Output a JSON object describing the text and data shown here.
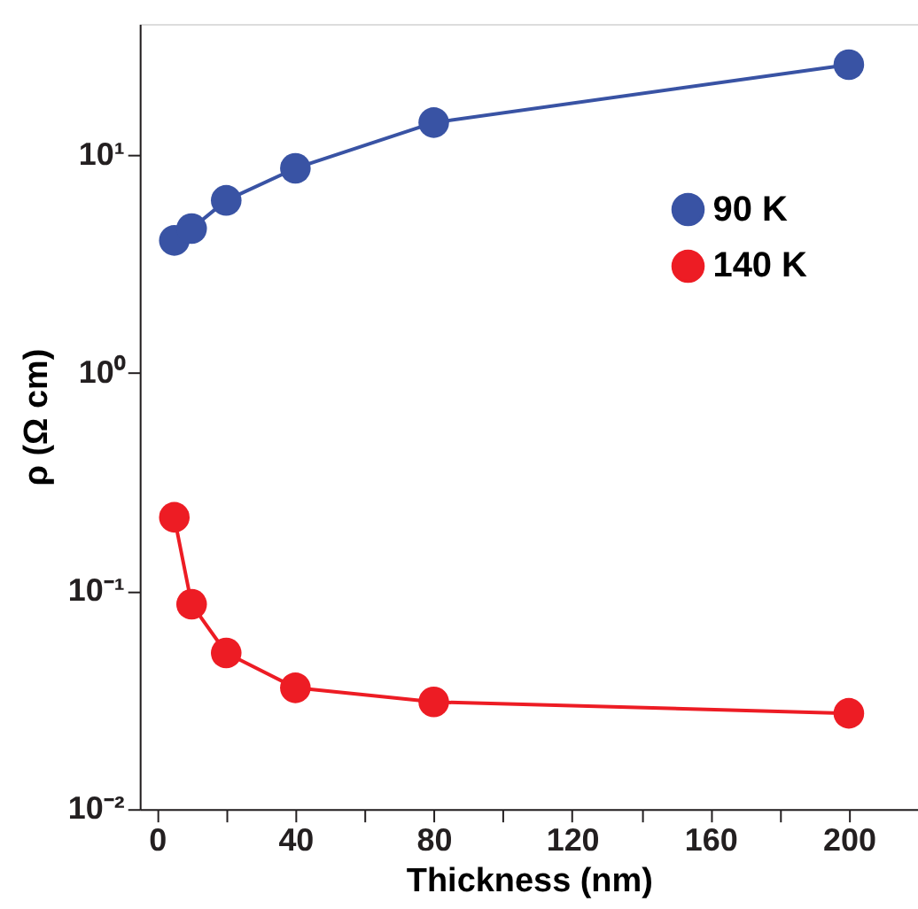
{
  "chart_data": {
    "type": "line",
    "xlabel": "Thickness (nm)",
    "ylabel": "ρ (Ω cm)",
    "log": "y",
    "marker": "circle",
    "line_style": "solid",
    "legend": "top right",
    "grid": false,
    "x": [
      5,
      10,
      20,
      40,
      80,
      200
    ],
    "series": [
      {
        "name": "90 K",
        "color": "#3953a4",
        "values": [
          4.06,
          4.6,
          6.2,
          8.7,
          14.1,
          26
        ]
      },
      {
        "name": "140 K",
        "color": "#ed1c24",
        "values": [
          0.218,
          0.087,
          0.052,
          0.036,
          0.031,
          0.0275
        ]
      }
    ],
    "xlim": [
      -5,
      220
    ],
    "xticks": [
      0,
      {
        "value": 20,
        "label": null
      },
      40,
      {
        "value": 60,
        "label": null
      },
      80,
      {
        "value": 100,
        "label": null
      },
      120,
      {
        "value": 140,
        "label": null
      },
      160,
      {
        "value": 180,
        "label": null
      },
      200
    ],
    "ylim": [
      0.01,
      40
    ],
    "yticks": [
      {
        "value": 0.01,
        "label": "10⁻²"
      },
      {
        "value": 0.1,
        "label": "10⁻¹"
      },
      {
        "value": 1,
        "label": "10⁰"
      },
      {
        "value": 10,
        "label": "10¹"
      }
    ]
  }
}
